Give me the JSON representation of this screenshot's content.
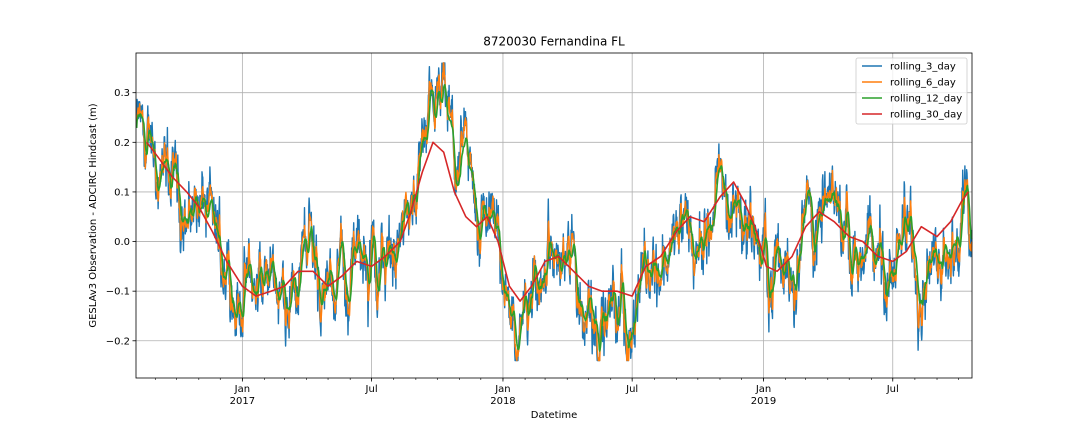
{
  "chart_data": {
    "type": "line",
    "title": "8720030 Fernandina FL",
    "xlabel": "Datetime",
    "ylabel": "GESLAv3 Observation - ADCIRC Hindcast (m)",
    "xlim": [
      "2016-08-05",
      "2019-10-20"
    ],
    "ylim": [
      -0.275,
      0.38
    ],
    "grid": true,
    "legend_position": "top-right",
    "x_major_ticks": [
      {
        "date": "2017-01-01",
        "label": "Jan",
        "sublabel": "2017"
      },
      {
        "date": "2017-07-01",
        "label": "Jul",
        "sublabel": ""
      },
      {
        "date": "2018-01-01",
        "label": "Jan",
        "sublabel": "2018"
      },
      {
        "date": "2018-07-01",
        "label": "Jul",
        "sublabel": ""
      },
      {
        "date": "2019-01-01",
        "label": "Jan",
        "sublabel": "2019"
      },
      {
        "date": "2019-07-01",
        "label": "Jul",
        "sublabel": ""
      }
    ],
    "y_ticks": [
      {
        "value": -0.2,
        "label": "−0.2"
      },
      {
        "value": -0.1,
        "label": "−0.1"
      },
      {
        "value": 0.0,
        "label": "0.0"
      },
      {
        "value": 0.1,
        "label": "0.1"
      },
      {
        "value": 0.2,
        "label": "0.2"
      },
      {
        "value": 0.3,
        "label": "0.3"
      }
    ],
    "series": [
      {
        "name": "rolling_3_day",
        "color": "#1f77b4"
      },
      {
        "name": "rolling_6_day",
        "color": "#ff7f0e"
      },
      {
        "name": "rolling_12_day",
        "color": "#2ca02c"
      },
      {
        "name": "rolling_30_day",
        "color": "#d62728",
        "x": [
          "2016-08-20",
          "2016-09-05",
          "2016-09-25",
          "2016-10-15",
          "2016-11-01",
          "2016-11-20",
          "2016-12-10",
          "2017-01-01",
          "2017-01-20",
          "2017-02-10",
          "2017-03-01",
          "2017-03-20",
          "2017-04-10",
          "2017-05-01",
          "2017-05-20",
          "2017-06-10",
          "2017-07-01",
          "2017-07-20",
          "2017-08-10",
          "2017-08-25",
          "2017-09-10",
          "2017-09-25",
          "2017-10-10",
          "2017-10-25",
          "2017-11-10",
          "2017-11-25",
          "2017-12-10",
          "2017-12-25",
          "2018-01-10",
          "2018-01-25",
          "2018-02-10",
          "2018-03-01",
          "2018-03-20",
          "2018-04-10",
          "2018-05-01",
          "2018-05-20",
          "2018-06-10",
          "2018-07-01",
          "2018-07-20",
          "2018-08-10",
          "2018-09-01",
          "2018-09-20",
          "2018-10-10",
          "2018-11-01",
          "2018-11-20",
          "2018-12-05",
          "2018-12-20",
          "2019-01-05",
          "2019-01-20",
          "2019-02-10",
          "2019-03-01",
          "2019-03-20",
          "2019-04-10",
          "2019-05-01",
          "2019-05-20",
          "2019-06-10",
          "2019-07-01",
          "2019-07-20",
          "2019-08-10",
          "2019-09-01",
          "2019-09-20",
          "2019-10-05",
          "2019-10-15"
        ],
        "y": [
          0.2,
          0.17,
          0.13,
          0.1,
          0.07,
          0.02,
          -0.04,
          -0.09,
          -0.11,
          -0.1,
          -0.09,
          -0.06,
          -0.06,
          -0.09,
          -0.07,
          -0.04,
          -0.05,
          -0.03,
          0.0,
          0.06,
          0.14,
          0.2,
          0.18,
          0.1,
          0.05,
          0.03,
          0.05,
          0.0,
          -0.09,
          -0.12,
          -0.09,
          -0.04,
          -0.03,
          -0.06,
          -0.09,
          -0.1,
          -0.1,
          -0.11,
          -0.05,
          -0.03,
          0.02,
          0.05,
          0.04,
          0.09,
          0.12,
          0.08,
          0.03,
          -0.05,
          -0.06,
          -0.03,
          0.03,
          0.06,
          0.04,
          0.01,
          0.0,
          -0.03,
          -0.04,
          -0.02,
          0.03,
          0.01,
          0.04,
          0.08,
          0.1
        ]
      }
    ]
  }
}
